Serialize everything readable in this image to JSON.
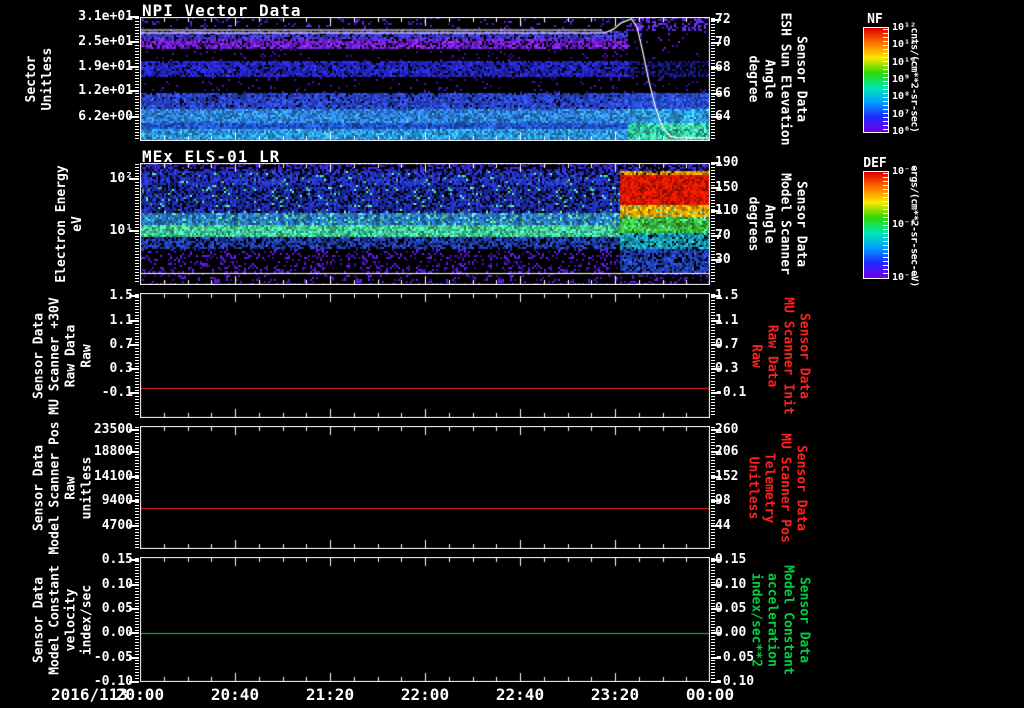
{
  "figure": {
    "date_label": "2016/113",
    "x_ticks": [
      "20:00",
      "20:40",
      "21:20",
      "22:00",
      "22:40",
      "23:20",
      "00:00"
    ],
    "background": "#000000",
    "accent_colors": {
      "red": "#ff2020",
      "green": "#00d040",
      "white": "#ffffff"
    }
  },
  "panels": [
    {
      "title": "NPI Vector Data",
      "left_label": [
        "Sector",
        "Unitless"
      ],
      "left_label_color": "#ffffff",
      "left_ticks": [
        {
          "label": "3.1e+01",
          "f": 0.0
        },
        {
          "label": "2.5e+01",
          "f": 0.2
        },
        {
          "label": "1.9e+01",
          "f": 0.4
        },
        {
          "label": "1.2e+01",
          "f": 0.6
        },
        {
          "label": "6.2e+00",
          "f": 0.805
        }
      ],
      "right_ticks": [
        {
          "label": "72",
          "f": 0.025
        },
        {
          "label": "70",
          "f": 0.21
        },
        {
          "label": "68",
          "f": 0.41
        },
        {
          "label": "66",
          "f": 0.62
        },
        {
          "label": "64",
          "f": 0.81
        }
      ],
      "right_label": [
        "Sensor Data",
        "ESH Sun Elevation",
        "Angle",
        "degree"
      ],
      "right_label_color": "#ffffff"
    },
    {
      "title": "MEx ELS-01 LR",
      "left_label": [
        "Electron Energy",
        "eV"
      ],
      "left_label_color": "#ffffff",
      "left_ticks": [
        {
          "label": "10²",
          "f": 0.131
        },
        {
          "label": "10¹",
          "f": 0.557
        }
      ],
      "right_ticks": [
        {
          "label": "190",
          "f": 0.0
        },
        {
          "label": "150",
          "f": 0.205
        },
        {
          "label": "110",
          "f": 0.393
        },
        {
          "label": "70",
          "f": 0.598
        },
        {
          "label": "30",
          "f": 0.795
        }
      ],
      "right_label": [
        "Sensor Data",
        "Model Scanner",
        "Angle",
        "degrees"
      ],
      "right_label_color": "#ffffff"
    },
    {
      "title": "",
      "left_label": [
        "Sensor Data",
        "MU Scanner +30V",
        "Raw Data",
        "Raw"
      ],
      "left_label_color": "#ffffff",
      "left_ticks": [
        {
          "label": "1.5",
          "f": 0.024
        },
        {
          "label": "1.1",
          "f": 0.224
        },
        {
          "label": "0.7",
          "f": 0.416
        },
        {
          "label": "0.3",
          "f": 0.608
        },
        {
          "label": "-0.1",
          "f": 0.8
        }
      ],
      "right_ticks": [
        {
          "label": "1.5",
          "f": 0.024
        },
        {
          "label": "1.1",
          "f": 0.224
        },
        {
          "label": "0.7",
          "f": 0.416
        },
        {
          "label": "0.3",
          "f": 0.608
        },
        {
          "label": "-0.1",
          "f": 0.8
        }
      ],
      "right_label": [
        "Sensor Data",
        "MU Scanner Init",
        "Raw Data",
        "Raw"
      ],
      "right_label_color": "#ff2020"
    },
    {
      "title": "",
      "left_label": [
        "Sensor Data",
        "Model Scanner Pos",
        "Raw",
        "unitless"
      ],
      "left_label_color": "#ffffff",
      "left_ticks": [
        {
          "label": "23500",
          "f": 0.033
        },
        {
          "label": "18800",
          "f": 0.211
        },
        {
          "label": "14100",
          "f": 0.415
        },
        {
          "label": "9400",
          "f": 0.61
        },
        {
          "label": "4700",
          "f": 0.813
        }
      ],
      "right_ticks": [
        {
          "label": "260",
          "f": 0.033
        },
        {
          "label": "206",
          "f": 0.211
        },
        {
          "label": "152",
          "f": 0.415
        },
        {
          "label": "98",
          "f": 0.61
        },
        {
          "label": "44",
          "f": 0.813
        }
      ],
      "right_label": [
        "Sensor Data",
        "MU Scanner Pos",
        "Telemetry",
        "Unitless"
      ],
      "right_label_color": "#ff2020"
    },
    {
      "title": "",
      "left_label": [
        "Sensor Data",
        "Model Constant",
        "velocity",
        "index/sec"
      ],
      "left_label_color": "#ffffff",
      "left_ticks": [
        {
          "label": "0.15",
          "f": 0.024
        },
        {
          "label": "0.10",
          "f": 0.224
        },
        {
          "label": "0.05",
          "f": 0.416
        },
        {
          "label": "0.00",
          "f": 0.608
        },
        {
          "label": "-0.05",
          "f": 0.808
        },
        {
          "label": "-0.10",
          "f": 1.0
        }
      ],
      "right_ticks": [
        {
          "label": "0.15",
          "f": 0.024
        },
        {
          "label": "0.10",
          "f": 0.224
        },
        {
          "label": "0.05",
          "f": 0.416
        },
        {
          "label": "0.00",
          "f": 0.608
        },
        {
          "label": "-0.05",
          "f": 0.808
        },
        {
          "label": "-0.10",
          "f": 1.0
        }
      ],
      "right_label": [
        "Sensor Data",
        "Model Constant",
        "acceleration",
        "index/sec**2"
      ],
      "right_label_color": "#00d040"
    }
  ],
  "colorbars": [
    {
      "title": "NF",
      "unit": "cnts/(cm**2-sr-sec)",
      "ticks": [
        "10¹²",
        "10¹¹",
        "10¹⁰",
        "10⁹",
        "10⁸",
        "10⁷",
        "10⁶"
      ],
      "gradient": [
        "#d80000",
        "#ff7000",
        "#ffe800",
        "#30d800",
        "#00e8b0",
        "#00a0ff",
        "#2028ff",
        "#7000e0"
      ]
    },
    {
      "title": "DEF",
      "unit": "ergs/(cm**2-sr-sec-eV)",
      "ticks": [
        "10⁻⁴",
        "10⁻⁶",
        "10⁻⁸"
      ],
      "gradient": [
        "#d80000",
        "#ff7000",
        "#ffe800",
        "#30d800",
        "#00e8b0",
        "#00a0ff",
        "#2028ff",
        "#7000e0"
      ]
    }
  ],
  "chart_data": [
    {
      "type": "heatmap",
      "title": "NPI Vector Data",
      "xlabel": "time 2016/113 20:00 to 2016/114 00:00",
      "ylabel": "Sector Unitless",
      "y_ticks": [
        31,
        25,
        19,
        12,
        6.2
      ],
      "right_axis": {
        "label": "Sensor Data ESH Sun Elevation Angle degree",
        "ticks": [
          72,
          70,
          68,
          66,
          64
        ]
      },
      "colorbar": "NF cnts/(cm**2-sr-sec) 1e6 to 1e12",
      "sun_elevation_points": [
        [
          "20:00",
          70.9
        ],
        [
          "23:15",
          70.9
        ],
        [
          "23:22",
          72.1
        ],
        [
          "23:28",
          67.0
        ],
        [
          "23:34",
          62.5
        ],
        [
          "00:00",
          62.4
        ]
      ],
      "transition": 0.855,
      "bands": [
        {
          "y0": 0.0,
          "y1": 0.105,
          "mode": "speckle",
          "color": "#5020c8",
          "density": 0.1
        },
        {
          "y0": 0.105,
          "y1": 0.165,
          "mode": "noise",
          "color": "#4438d8",
          "drop": 0.15
        },
        {
          "y0": 0.165,
          "y1": 0.245,
          "mode": "noise",
          "color": "#7820e8",
          "drop": 0.2
        },
        {
          "y0": 0.245,
          "y1": 0.34,
          "mode": "speckle",
          "color": "#4010a8",
          "density": 0.05
        },
        {
          "y0": 0.34,
          "y1": 0.475,
          "mode": "noise",
          "color": "#2626cc",
          "drop": 0.15
        },
        {
          "y0": 0.475,
          "y1": 0.61,
          "mode": "speckle",
          "color": "#4010a8",
          "density": 0.06
        },
        {
          "y0": 0.61,
          "y1": 0.73,
          "mode": "noise",
          "color": "#2a46d4",
          "drop": 0.1
        },
        {
          "y0": 0.73,
          "y1": 0.84,
          "mode": "noise",
          "color": "#2f86ea"
        },
        {
          "y0": 0.84,
          "y1": 0.9,
          "mode": "noise",
          "color": "#2257d8"
        },
        {
          "y0": 0.9,
          "y1": 0.97,
          "mode": "noise",
          "color": "#2d9ef2"
        },
        {
          "y0": 0.97,
          "y1": 1.0,
          "mode": "noise",
          "color": "#2470d0"
        }
      ],
      "post_bands": [
        {
          "y0": 0.0,
          "y1": 0.105,
          "mode": "speckle",
          "color": "#5a28e0",
          "density": 0.45
        },
        {
          "y0": 0.105,
          "y1": 0.245,
          "mode": "speckle",
          "color": "#5a18c8",
          "density": 0.06
        },
        {
          "y0": 0.245,
          "y1": 0.34,
          "mode": "speckle",
          "color": "#4010a8",
          "density": 0.03
        },
        {
          "y0": 0.34,
          "y1": 0.475,
          "mode": "noise",
          "color": "#1a1a90",
          "drop": 0.5
        },
        {
          "y0": 0.475,
          "y1": 0.61,
          "mode": "speckle",
          "color": "#4010a8",
          "density": 0.05
        },
        {
          "y0": 0.61,
          "y1": 0.73,
          "mode": "noise",
          "color": "#2a50e0"
        },
        {
          "y0": 0.73,
          "y1": 0.84,
          "mode": "noise",
          "color": "#30a0f0"
        },
        {
          "y0": 0.84,
          "y1": 1.0,
          "mode": "noise",
          "color": "#28c8a8",
          "cyan": 0.3
        }
      ],
      "overlays": [
        {
          "kind": "poly",
          "color": "#ffffff",
          "pts": [
            [
              0,
              0.105
            ],
            [
              0.81,
              0.105
            ]
          ]
        },
        {
          "kind": "poly",
          "color": "#ffffff",
          "pts": [
            [
              0,
              0.129
            ],
            [
              0.815,
              0.129
            ],
            [
              0.83,
              0.1
            ],
            [
              0.845,
              0.045
            ],
            [
              0.862,
              0.016
            ],
            [
              0.872,
              0.08
            ],
            [
              0.882,
              0.28
            ],
            [
              0.893,
              0.52
            ],
            [
              0.905,
              0.74
            ],
            [
              0.917,
              0.89
            ],
            [
              0.93,
              0.963
            ],
            [
              0.945,
              0.975
            ],
            [
              1,
              0.975
            ]
          ]
        }
      ]
    },
    {
      "type": "heatmap",
      "title": "MEx ELS-01 LR",
      "xlabel": "time 2016/113 20:00 to 2016/114 00:00",
      "ylabel": "Electron Energy eV (log scale, 10^1 and 10^2 labeled)",
      "right_axis": {
        "label": "Sensor Data Model Scanner Angle degrees",
        "ticks": [
          190,
          150,
          110,
          70,
          30
        ]
      },
      "colorbar": "DEF ergs/(cm**2-sr-sec-eV) 1e-8 to 1e-4",
      "scanner_angle_line_value": 9,
      "transition": 0.84,
      "bands": [
        {
          "y0": 0.0,
          "y1": 0.05,
          "mode": "speckle",
          "color": "#3328cc",
          "density": 0.5
        },
        {
          "y0": 0.05,
          "y1": 0.18,
          "mode": "noise",
          "color": "#2434c8",
          "drop": 0.2,
          "cyan": 0.05
        },
        {
          "y0": 0.18,
          "y1": 0.4,
          "mode": "noise",
          "color": "#2030b8",
          "drop": 0.25,
          "cyan": 0.08
        },
        {
          "y0": 0.4,
          "y1": 0.5,
          "mode": "noise",
          "color": "#2878cc",
          "cyan": 0.18
        },
        {
          "y0": 0.5,
          "y1": 0.6,
          "mode": "noise",
          "color": "#38c896",
          "cyan": 0.3
        },
        {
          "y0": 0.6,
          "y1": 0.7,
          "mode": "noise",
          "color": "#2342b8",
          "drop": 0.3
        },
        {
          "y0": 0.7,
          "y1": 0.895,
          "mode": "speckle",
          "color": "#5018c8",
          "density": 0.22
        },
        {
          "y0": 0.895,
          "y1": 1.0,
          "mode": "speckle",
          "color": "#5018c8",
          "density": 0.12
        }
      ],
      "post_bands": [
        {
          "y0": 0.0,
          "y1": 0.05,
          "mode": "speckle",
          "color": "#3328cc",
          "density": 0.5
        },
        {
          "y0": 0.05,
          "y1": 0.09,
          "mode": "noise",
          "color": "#ff9900",
          "drop": 0.1
        },
        {
          "y0": 0.09,
          "y1": 0.33,
          "mode": "noise",
          "color": "#e81800"
        },
        {
          "y0": 0.33,
          "y1": 0.43,
          "mode": "noise",
          "color": "#f0a800",
          "cyan": 0.1
        },
        {
          "y0": 0.43,
          "y1": 0.57,
          "mode": "noise",
          "color": "#38b838",
          "cyan": 0.15
        },
        {
          "y0": 0.57,
          "y1": 0.7,
          "mode": "noise",
          "color": "#18a0b8",
          "drop": 0.1
        },
        {
          "y0": 0.7,
          "y1": 0.9,
          "mode": "noise",
          "color": "#2244c0",
          "drop": 0.25
        },
        {
          "y0": 0.9,
          "y1": 1.0,
          "mode": "speckle",
          "color": "#5018c8",
          "density": 0.2
        }
      ],
      "overlays": [
        {
          "kind": "hline",
          "f": 0.902,
          "color": "#ffffff"
        }
      ]
    },
    {
      "type": "line",
      "series": [
        {
          "name": "Sensor Data MU Scanner +30V Raw Data Raw",
          "color": "#ff2020",
          "constant_value": -0.02
        }
      ],
      "ylim": [
        -0.1,
        1.5
      ],
      "right_ylim": [
        -0.1,
        1.5
      ],
      "overlays": [
        {
          "kind": "hline",
          "f": 0.76,
          "color": "#ff2020"
        }
      ]
    },
    {
      "type": "line",
      "series": [
        {
          "name": "Sensor Data Model Scanner Pos Raw unitless",
          "color": "#ff2020",
          "constant_value": 8200
        }
      ],
      "ylim": [
        4700,
        23500
      ],
      "right_ylim": [
        44,
        260
      ],
      "right_constant_value": 84,
      "overlays": [
        {
          "kind": "hline",
          "f": 0.667,
          "color": "#ff2020"
        }
      ]
    },
    {
      "type": "line",
      "series": [
        {
          "name": "Sensor Data Model Constant velocity index/sec",
          "color": "#00d040",
          "constant_value": 0.0
        }
      ],
      "ylim": [
        -0.1,
        0.15
      ],
      "right_ylim": [
        -0.1,
        0.15
      ],
      "overlays": [
        {
          "kind": "hline",
          "f": 0.608,
          "color": "#00d040"
        }
      ]
    }
  ]
}
